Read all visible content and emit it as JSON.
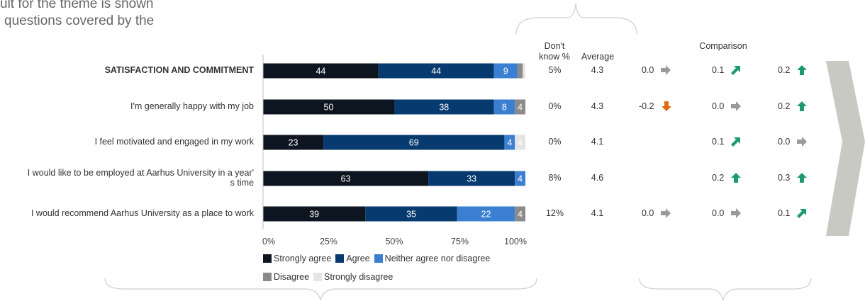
{
  "intro": {
    "line1": "ult for the theme is shown",
    "line2": "questions covered by the"
  },
  "headers": {
    "dont_know_1": "Don't",
    "dont_know_2": "know %",
    "average": "Average",
    "comparison": "Comparison"
  },
  "colors": {
    "strongly_agree": "#0d1520",
    "agree": "#073a6f",
    "neither": "#3b7fd1",
    "disagree": "#8a8a8a",
    "strongly_disagree": "#e4e4e4",
    "arrow_up": "#1e9b6e",
    "arrow_down": "#e26a12",
    "arrow_flat": "#9a9a9a",
    "chevron": "#c9c9c3"
  },
  "chart_data": {
    "type": "bar",
    "orientation": "horizontal-stacked",
    "categories": [
      "SATISFACTION AND COMMITMENT",
      "I'm generally happy with my job",
      "I feel motivated and engaged in my work",
      "I would like to be employed at Aarhus University in a year's time",
      "I would recommend Aarhus University as a place to work"
    ],
    "category_lines": [
      [
        "SATISFACTION AND COMMITMENT"
      ],
      [
        "I'm generally happy with my job"
      ],
      [
        "I feel motivated and engaged in my work"
      ],
      [
        "I would like to be employed at Aarhus University in a year'",
        "s time"
      ],
      [
        "I would recommend Aarhus University as a place to work"
      ]
    ],
    "series": [
      {
        "name": "Strongly agree",
        "values": [
          44,
          50,
          23,
          63,
          39
        ]
      },
      {
        "name": "Agree",
        "values": [
          44,
          38,
          69,
          33,
          35
        ]
      },
      {
        "name": "Neither agree nor disagree",
        "values": [
          9,
          8,
          4,
          4,
          22
        ]
      },
      {
        "name": "Disagree",
        "values": [
          2,
          4,
          0,
          0,
          4
        ]
      },
      {
        "name": "Strongly disagree",
        "values": [
          1,
          0,
          4,
          0,
          0
        ]
      }
    ],
    "labels_shown": [
      [
        "44",
        "44",
        "9",
        "",
        ""
      ],
      [
        "50",
        "38",
        "8",
        "4",
        ""
      ],
      [
        "23",
        "69",
        "4",
        "",
        "4"
      ],
      [
        "63",
        "33",
        "4",
        "",
        ""
      ],
      [
        "39",
        "35",
        "22",
        "4",
        ""
      ]
    ],
    "xlim": [
      0,
      100
    ],
    "xticks": [
      "0%",
      "25%",
      "50%",
      "75%",
      "100%"
    ],
    "legend_position": "bottom",
    "dont_know": [
      "5%",
      "0%",
      "0%",
      "8%",
      "12%"
    ],
    "average": [
      "4.3",
      "4.3",
      "4.1",
      "4.6",
      "4.1"
    ],
    "comparison": [
      [
        {
          "v": "0.0",
          "d": "flat"
        },
        {
          "v": "0.1",
          "d": "diag-up"
        },
        {
          "v": "0.2",
          "d": "up"
        }
      ],
      [
        {
          "v": "-0.2",
          "d": "down"
        },
        {
          "v": "0.0",
          "d": "flat"
        },
        {
          "v": "0.2",
          "d": "up"
        }
      ],
      [
        null,
        {
          "v": "0.1",
          "d": "diag-up"
        },
        {
          "v": "0.0",
          "d": "flat"
        }
      ],
      [
        null,
        {
          "v": "0.2",
          "d": "up"
        },
        {
          "v": "0.3",
          "d": "up"
        }
      ],
      [
        {
          "v": "0.0",
          "d": "flat"
        },
        {
          "v": "0.0",
          "d": "flat"
        },
        {
          "v": "0.1",
          "d": "diag-up"
        }
      ]
    ]
  }
}
